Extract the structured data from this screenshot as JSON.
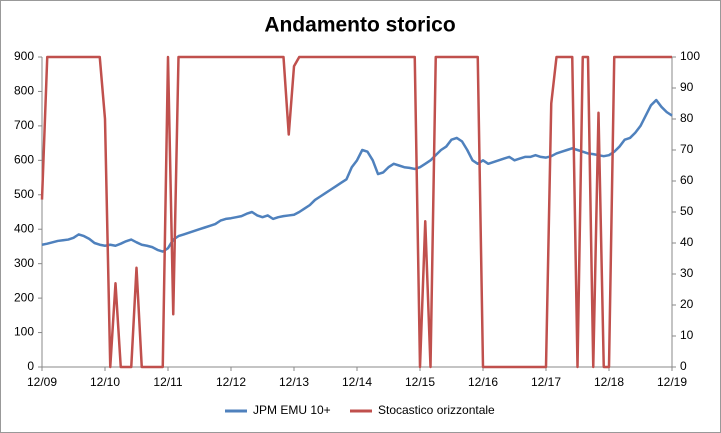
{
  "chart_data": {
    "type": "line",
    "title": "Andamento storico",
    "categories": [
      "12/09",
      null,
      null,
      null,
      null,
      null,
      null,
      null,
      null,
      null,
      null,
      null,
      "12/10",
      null,
      null,
      null,
      null,
      null,
      null,
      null,
      null,
      null,
      null,
      null,
      "12/11",
      null,
      null,
      null,
      null,
      null,
      null,
      null,
      null,
      null,
      null,
      null,
      "12/12",
      null,
      null,
      null,
      null,
      null,
      null,
      null,
      null,
      null,
      null,
      null,
      "12/13",
      null,
      null,
      null,
      null,
      null,
      null,
      null,
      null,
      null,
      null,
      null,
      "12/14",
      null,
      null,
      null,
      null,
      null,
      null,
      null,
      null,
      null,
      null,
      null,
      "12/15",
      null,
      null,
      null,
      null,
      null,
      null,
      null,
      null,
      null,
      null,
      null,
      "12/16",
      null,
      null,
      null,
      null,
      null,
      null,
      null,
      null,
      null,
      null,
      null,
      "12/17",
      null,
      null,
      null,
      null,
      null,
      null,
      null,
      null,
      null,
      null,
      null,
      "12/18",
      null,
      null,
      null,
      null,
      null,
      null,
      null,
      null,
      null,
      null,
      null,
      "12/19"
    ],
    "series": [
      {
        "name": "JPM EMU 10+",
        "color": "#4f81bd",
        "values": [
          355,
          358,
          362,
          366,
          368,
          370,
          375,
          385,
          380,
          372,
          360,
          355,
          352,
          355,
          352,
          358,
          365,
          370,
          362,
          355,
          352,
          348,
          340,
          335,
          345,
          370,
          380,
          385,
          390,
          395,
          400,
          405,
          410,
          415,
          425,
          430,
          432,
          435,
          438,
          445,
          450,
          440,
          435,
          440,
          430,
          435,
          438,
          440,
          442,
          450,
          460,
          470,
          485,
          495,
          505,
          515,
          525,
          535,
          545,
          580,
          600,
          630,
          625,
          600,
          560,
          565,
          580,
          590,
          585,
          580,
          578,
          575,
          580,
          590,
          600,
          615,
          630,
          640,
          660,
          665,
          655,
          630,
          600,
          590,
          600,
          590,
          595,
          600,
          605,
          610,
          600,
          605,
          610,
          610,
          615,
          610,
          608,
          612,
          620,
          625,
          630,
          635,
          630,
          625,
          620,
          618,
          615,
          612,
          615,
          625,
          640,
          660,
          665,
          680,
          700,
          730,
          760,
          775,
          755,
          740,
          730
        ]
      },
      {
        "name": "Stocastico orizzontale",
        "color": "#c0504d",
        "axis": "y2",
        "values": [
          54,
          100,
          100,
          100,
          100,
          100,
          100,
          100,
          100,
          100,
          100,
          100,
          80,
          0,
          27,
          0,
          0,
          0,
          32,
          0,
          0,
          0,
          0,
          0,
          100,
          17,
          100,
          100,
          100,
          100,
          100,
          100,
          100,
          100,
          100,
          100,
          100,
          100,
          100,
          100,
          100,
          100,
          100,
          100,
          100,
          100,
          100,
          75,
          97,
          100,
          100,
          100,
          100,
          100,
          100,
          100,
          100,
          100,
          100,
          100,
          100,
          100,
          100,
          100,
          100,
          100,
          100,
          100,
          100,
          100,
          100,
          100,
          0,
          47,
          0,
          100,
          100,
          100,
          100,
          100,
          100,
          100,
          100,
          100,
          0,
          0,
          0,
          0,
          0,
          0,
          0,
          0,
          0,
          0,
          0,
          0,
          0,
          85,
          100,
          100,
          100,
          100,
          0,
          100,
          100,
          0,
          82,
          0,
          0,
          100,
          100,
          100,
          100,
          100,
          100,
          100,
          100,
          100,
          100,
          100,
          100
        ]
      }
    ],
    "ylim": [
      0,
      900
    ],
    "yticks": [
      0,
      100,
      200,
      300,
      400,
      500,
      600,
      700,
      800,
      900
    ],
    "y2lim": [
      0,
      100
    ],
    "y2ticks": [
      0,
      10,
      20,
      30,
      40,
      50,
      60,
      70,
      80,
      90,
      100
    ],
    "legend": "bottom"
  }
}
